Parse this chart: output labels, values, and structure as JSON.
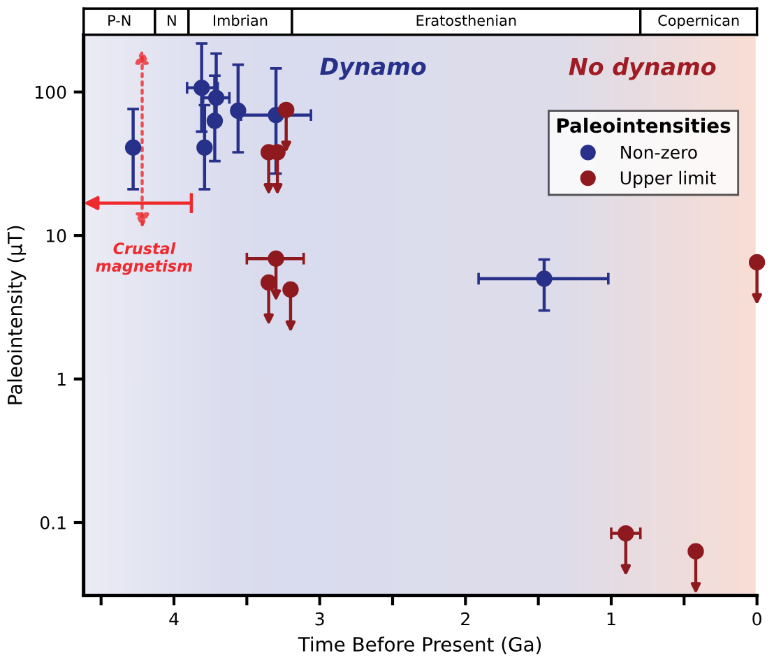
{
  "chart_data": {
    "type": "scatter",
    "xlabel": "Time Before Present (Ga)",
    "ylabel": "Paleointensity (μT)",
    "legend_title": "Paleointensities",
    "legend": "top right",
    "log": true,
    "marker": "circle",
    "xlim": [
      4.62,
      0
    ],
    "ylim": [
      0.031,
      250
    ],
    "xticks": [
      {
        "value": 4.5,
        "label": null
      },
      4,
      {
        "value": 3.5,
        "label": null
      },
      3,
      {
        "value": 2.5,
        "label": null
      },
      2,
      {
        "value": 1.5,
        "label": null
      },
      1,
      {
        "value": 0.5,
        "label": null
      },
      0
    ],
    "yticks": [
      0.1,
      1,
      10,
      100
    ],
    "series": [
      {
        "name": "Non-zero",
        "color": "#27318a",
        "x": [
          4.28,
          3.81,
          3.71,
          3.72,
          3.79,
          3.56,
          3.3,
          1.46
        ],
        "values": [
          41,
          107,
          91,
          63,
          41,
          74,
          69,
          5.0
        ],
        "errors": [
          [
            21,
            76
          ],
          [
            53,
            218
          ],
          [
            60,
            185
          ],
          [
            33,
            130
          ],
          [
            21,
            81
          ],
          [
            38,
            155
          ],
          [
            27,
            146
          ],
          [
            3.0,
            6.8
          ]
        ],
        "xerrors": [
          null,
          [
            3.7,
            3.91
          ],
          [
            3.62,
            3.8
          ],
          null,
          null,
          null,
          [
            3.06,
            3.54
          ],
          [
            1.02,
            1.91
          ]
        ]
      },
      {
        "name": "Upper limit",
        "color": "#8e1a1f",
        "x": [
          3.23,
          3.35,
          3.29,
          3.3,
          3.35,
          3.2,
          0.9,
          0.42,
          0.0
        ],
        "values": [
          75,
          38,
          38,
          6.9,
          4.7,
          4.2,
          0.084,
          0.063,
          6.5
        ],
        "xerrors": [
          null,
          null,
          null,
          [
            3.11,
            3.5
          ],
          null,
          null,
          [
            0.8,
            1.0
          ],
          null,
          null
        ]
      }
    ],
    "bands": [
      {
        "axis": "x",
        "from": 4.62,
        "to": 4.13,
        "label": "P-N"
      },
      {
        "axis": "x",
        "from": 4.13,
        "to": 3.9,
        "label": "N"
      },
      {
        "axis": "x",
        "from": 3.9,
        "to": 3.19,
        "label": "Imbrian"
      },
      {
        "axis": "x",
        "from": 3.19,
        "to": 0.8,
        "label": "Eratosthenian"
      },
      {
        "axis": "x",
        "from": 0.8,
        "to": 0,
        "label": "Copernican"
      }
    ],
    "annotations": [
      "Dynamo",
      "No dynamo",
      "Crustal\nmagnetism"
    ]
  }
}
